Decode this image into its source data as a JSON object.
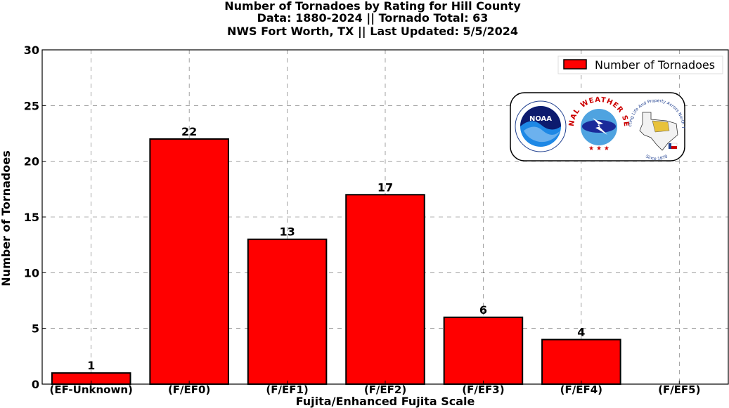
{
  "chart_data": {
    "type": "bar",
    "title_lines": [
      "Number of Tornadoes by Rating for Hill County",
      "Data: 1880-2024 || Tornado Total: 63",
      "NWS Fort Worth, TX || Last Updated: 5/5/2024"
    ],
    "xlabel": "Fujita/Enhanced Fujita Scale",
    "ylabel": "Number of Tornadoes",
    "categories": [
      "(EF-Unknown)",
      "(F/EF0)",
      "(F/EF1)",
      "(F/EF2)",
      "(F/EF3)",
      "(F/EF4)",
      "(F/EF5)"
    ],
    "series": [
      {
        "name": "Number of Tornadoes",
        "values": [
          1,
          22,
          13,
          17,
          6,
          4,
          0
        ]
      }
    ],
    "data_labels": [
      "1",
      "22",
      "13",
      "17",
      "6",
      "4",
      ""
    ],
    "ylim": [
      0,
      30
    ],
    "yticks": [
      0,
      5,
      10,
      15,
      20,
      25,
      30
    ],
    "grid": true,
    "legend_position": "top-right",
    "bar_color": "#ff0000"
  },
  "logos": {
    "noaa": "NOAA",
    "nws_ring": "NATIONAL WEATHER SERVICE",
    "fwd_ring": "Protecting Life And Property Across North Texas",
    "since": "Since 1870"
  }
}
